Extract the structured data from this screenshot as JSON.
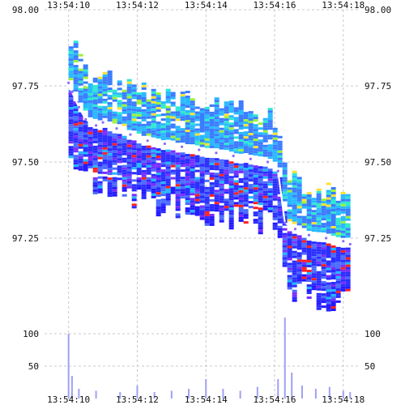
{
  "chart_data": {
    "type": "heatmap",
    "title": "",
    "xlabel": "",
    "ylabel": "",
    "x_ticks": [
      "13:54:10",
      "13:54:12",
      "13:54:14",
      "13:54:16",
      "13:54:18"
    ],
    "x_tick_seconds": [
      0,
      2,
      4,
      6,
      8
    ],
    "x_range_seconds": [
      -0.7,
      8.5
    ],
    "price_axis": {
      "ylim": [
        97.0,
        98.0
      ],
      "ticks": [
        "98.00",
        "97.75",
        "97.50",
        "97.25"
      ],
      "tick_values": [
        98.0,
        97.75,
        97.5,
        97.25
      ]
    },
    "volume_axis": {
      "ylim": [
        0,
        130
      ],
      "ticks": [
        "100",
        "50"
      ],
      "tick_values": [
        100,
        50
      ]
    },
    "grid": true,
    "series": [
      {
        "values": [
          [
            0.0,
            97.76
          ],
          [
            0.1,
            97.73
          ],
          [
            0.3,
            97.68
          ],
          [
            0.5,
            97.64
          ],
          [
            0.8,
            97.62
          ],
          [
            1.0,
            97.63
          ],
          [
            1.4,
            97.61
          ],
          [
            1.8,
            97.59
          ],
          [
            2.3,
            97.57
          ],
          [
            2.8,
            97.56
          ],
          [
            3.3,
            97.55
          ],
          [
            3.8,
            97.54
          ],
          [
            4.3,
            97.53
          ],
          [
            4.8,
            97.52
          ],
          [
            5.3,
            97.51
          ],
          [
            5.8,
            97.5
          ],
          [
            6.1,
            97.47
          ],
          [
            6.3,
            97.3
          ],
          [
            6.6,
            97.28
          ],
          [
            7.0,
            97.26
          ],
          [
            7.5,
            97.25
          ],
          [
            8.0,
            97.24
          ],
          [
            8.2,
            97.23
          ]
        ]
      },
      {
        "values": [
          [
            0.0,
            100
          ],
          [
            0.1,
            35
          ],
          [
            0.3,
            15
          ],
          [
            0.8,
            12
          ],
          [
            1.5,
            10
          ],
          [
            2.0,
            20
          ],
          [
            2.5,
            10
          ],
          [
            3.0,
            12
          ],
          [
            3.5,
            15
          ],
          [
            4.0,
            30
          ],
          [
            4.5,
            15
          ],
          [
            5.0,
            12
          ],
          [
            5.5,
            18
          ],
          [
            6.1,
            30
          ],
          [
            6.3,
            125
          ],
          [
            6.5,
            40
          ],
          [
            6.8,
            20
          ],
          [
            7.2,
            15
          ],
          [
            7.6,
            18
          ],
          [
            8.0,
            12
          ],
          [
            8.2,
            10
          ]
        ]
      }
    ]
  }
}
